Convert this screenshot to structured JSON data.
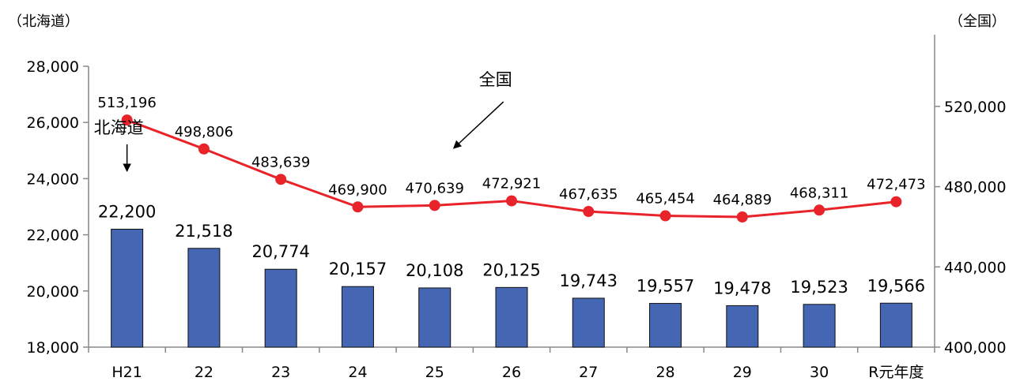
{
  "chart_data": {
    "type": "bar",
    "categories": [
      "H21",
      "22",
      "23",
      "24",
      "25",
      "26",
      "27",
      "28",
      "29",
      "30",
      "R元年度"
    ],
    "series": [
      {
        "name": "北海道",
        "type": "bar",
        "axis": "left",
        "color": "#4466b3",
        "values": [
          22200,
          21518,
          20774,
          20157,
          20108,
          20125,
          19743,
          19557,
          19478,
          19523,
          19566
        ],
        "labels": [
          "22,200",
          "21,518",
          "20,774",
          "20,157",
          "20,108",
          "20,125",
          "19,743",
          "19,557",
          "19,478",
          "19,523",
          "19,566"
        ]
      },
      {
        "name": "全国",
        "type": "line",
        "axis": "right",
        "color": "#e8232a",
        "values": [
          513196,
          498806,
          483639,
          469900,
          470639,
          472921,
          467635,
          465454,
          464889,
          468311,
          472473
        ],
        "labels": [
          "513,196",
          "498,806",
          "483,639",
          "469,900",
          "470,639",
          "472,921",
          "467,635",
          "465,454",
          "464,889",
          "468,311",
          "472,473"
        ]
      }
    ],
    "y_left": {
      "unit_label": "（北海道）",
      "ylim": [
        18000,
        28000
      ],
      "ticks": [
        18000,
        20000,
        22000,
        24000,
        26000,
        28000
      ],
      "tick_labels": [
        "18,000",
        "20,000",
        "22,000",
        "24,000",
        "26,000",
        "28,000"
      ]
    },
    "y_right": {
      "unit_label": "（全国）",
      "ylim": [
        400000,
        540000
      ],
      "ticks": [
        400000,
        440000,
        480000,
        520000
      ],
      "tick_labels": [
        "400,000",
        "440,000",
        "480,000",
        "520,000"
      ]
    },
    "annotations": [
      {
        "text": "北海道",
        "target_series": "北海道",
        "arrow": "down"
      },
      {
        "text": "全国",
        "target_series": "全国",
        "arrow": "down-left"
      }
    ],
    "grid": false,
    "legend": "none"
  }
}
